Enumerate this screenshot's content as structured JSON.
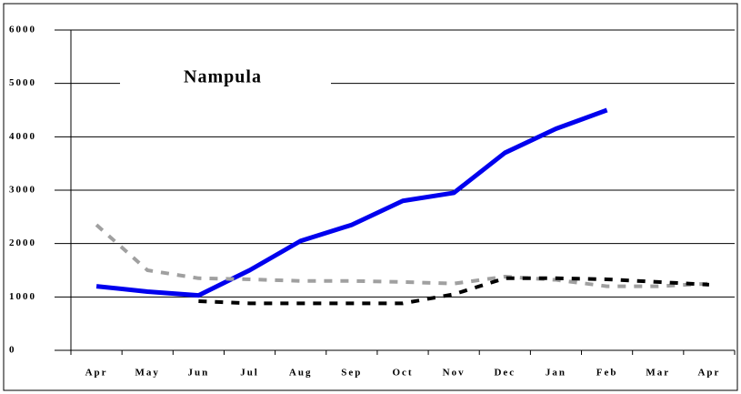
{
  "chart_data": {
    "type": "line",
    "title": "Nampula",
    "categories": [
      "Apr",
      "May",
      "Jun",
      "Jul",
      "Aug",
      "Sep",
      "Oct",
      "Nov",
      "Dec",
      "Jan",
      "Feb",
      "Mar",
      "Apr"
    ],
    "series": [
      {
        "color": "#0000ee",
        "style": "solid",
        "values": [
          1200,
          1100,
          1030,
          1500,
          2050,
          2350,
          2800,
          2950,
          3700,
          4150,
          4500,
          null,
          null
        ]
      },
      {
        "color": "#a0a0a0",
        "style": "dashed",
        "values": [
          2350,
          1500,
          1350,
          1330,
          1300,
          1300,
          1280,
          1250,
          1380,
          1320,
          1200,
          1200,
          1250
        ]
      },
      {
        "color": "#000000",
        "style": "dashed",
        "values": [
          null,
          null,
          920,
          880,
          880,
          880,
          880,
          1050,
          1350,
          1350,
          1330,
          1280,
          1230
        ]
      }
    ],
    "ylim": [
      0,
      6000
    ],
    "yticks": [
      0,
      1000,
      2000,
      3000,
      4000,
      5000,
      6000
    ],
    "grid": true
  }
}
